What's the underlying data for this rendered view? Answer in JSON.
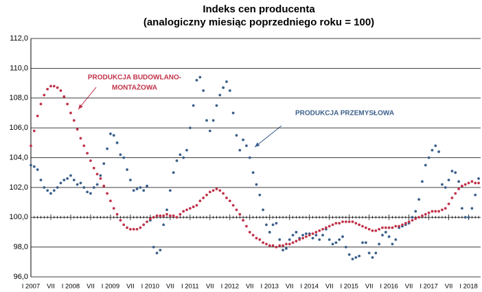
{
  "chart_data": {
    "type": "line",
    "title": "Indeks cen producenta",
    "subtitle": "(analogiczny miesiąc poprzedniego roku = 100)",
    "categories": [
      "I 2007",
      null,
      null,
      null,
      null,
      null,
      "VII",
      null,
      null,
      null,
      null,
      null,
      "I 2008",
      null,
      null,
      null,
      null,
      null,
      "VII",
      null,
      null,
      null,
      null,
      null,
      "I 2009",
      null,
      null,
      null,
      null,
      null,
      "VII",
      null,
      null,
      null,
      null,
      null,
      "I 2010",
      null,
      null,
      null,
      null,
      null,
      "VII",
      null,
      null,
      null,
      null,
      null,
      "I 2011",
      null,
      null,
      null,
      null,
      null,
      "VII",
      null,
      null,
      null,
      null,
      null,
      "I 2012",
      null,
      null,
      null,
      null,
      null,
      "VII",
      null,
      null,
      null,
      null,
      null,
      "I 2013",
      null,
      null,
      null,
      null,
      null,
      "VII",
      null,
      null,
      null,
      null,
      null,
      "I 2014",
      null,
      null,
      null,
      null,
      null,
      "VII",
      null,
      null,
      null,
      null,
      null,
      "I 2015",
      null,
      null,
      null,
      null,
      null,
      "VII",
      null,
      null,
      null,
      null,
      null,
      "I 2016",
      null,
      null,
      null,
      null,
      null,
      "VII",
      null,
      null,
      null,
      null,
      null,
      "I 2017",
      null,
      null,
      null,
      null,
      null,
      "VII",
      null,
      null,
      null,
      null,
      null,
      "I 2018",
      null,
      null,
      null
    ],
    "series": [
      {
        "name": "PRODUKCJA PRZEMYSŁOWA",
        "color": "#3b5f8a",
        "values": [
          103.5,
          103.4,
          103.2,
          102.5,
          102.0,
          101.8,
          101.6,
          101.8,
          102.0,
          102.3,
          102.5,
          102.6,
          102.8,
          102.5,
          102.2,
          102.3,
          102.0,
          101.7,
          101.6,
          102.0,
          102.2,
          102.8,
          103.6,
          104.6,
          105.6,
          105.5,
          105.0,
          104.2,
          104.0,
          103.2,
          102.5,
          101.8,
          101.9,
          102.0,
          101.8,
          102.1,
          99.8,
          98.0,
          97.6,
          97.8,
          99.5,
          100.5,
          101.8,
          103.0,
          103.8,
          104.2,
          104.0,
          104.5,
          106.0,
          107.5,
          109.2,
          109.4,
          108.5,
          106.5,
          105.8,
          106.5,
          107.5,
          108.2,
          108.7,
          109.1,
          108.5,
          107.0,
          105.5,
          104.5,
          105.2,
          104.8,
          104.0,
          103.0,
          102.2,
          101.5,
          100.5,
          99.5,
          99.0,
          99.5,
          99.6,
          98.5,
          97.8,
          97.9,
          98.5,
          98.8,
          99.0,
          98.6,
          98.8,
          98.9,
          98.9,
          98.6,
          98.8,
          98.5,
          98.8,
          99.2,
          98.5,
          98.2,
          98.3,
          98.5,
          98.7,
          98.0,
          97.5,
          97.2,
          97.3,
          97.4,
          98.3,
          98.3,
          97.6,
          97.3,
          97.6,
          98.2,
          98.8,
          99.0,
          98.7,
          98.2,
          98.5,
          99.3,
          99.4,
          99.5,
          99.6,
          100.0,
          100.4,
          101.2,
          102.4,
          103.5,
          104.0,
          104.5,
          104.8,
          104.4,
          102.2,
          102.0,
          102.5,
          103.1,
          103.0,
          102.4,
          100.6,
          100.0,
          100.0,
          100.6,
          101.5,
          102.6
        ]
      },
      {
        "name": "PRODUKCJA BUDOWLANO-MONTAŻOWA",
        "color": "#c0334a",
        "values": [
          104.8,
          105.8,
          106.8,
          107.6,
          108.2,
          108.6,
          108.8,
          108.8,
          108.7,
          108.5,
          108.1,
          107.6,
          107.0,
          106.5,
          105.9,
          105.3,
          104.8,
          104.3,
          103.8,
          103.3,
          102.9,
          102.6,
          102.1,
          101.6,
          101.1,
          100.6,
          100.2,
          99.8,
          99.5,
          99.3,
          99.2,
          99.2,
          99.2,
          99.3,
          99.5,
          99.7,
          99.9,
          100.0,
          100.1,
          100.1,
          100.1,
          100.2,
          100.1,
          100.1,
          100.0,
          100.2,
          100.4,
          100.5,
          100.6,
          100.7,
          100.8,
          101.1,
          101.3,
          101.5,
          101.7,
          101.8,
          101.9,
          101.8,
          101.6,
          101.3,
          101.1,
          100.8,
          100.5,
          100.2,
          99.8,
          99.4,
          99.0,
          98.8,
          98.6,
          98.5,
          98.3,
          98.2,
          98.1,
          98.1,
          98.0,
          98.1,
          98.1,
          98.2,
          98.2,
          98.3,
          98.4,
          98.5,
          98.6,
          98.7,
          98.8,
          98.9,
          99.0,
          99.1,
          99.2,
          99.3,
          99.4,
          99.5,
          99.6,
          99.6,
          99.7,
          99.7,
          99.7,
          99.7,
          99.6,
          99.5,
          99.4,
          99.3,
          99.2,
          99.1,
          99.1,
          99.2,
          99.3,
          99.3,
          99.3,
          99.3,
          99.4,
          99.4,
          99.5,
          99.6,
          99.7,
          99.8,
          99.9,
          100.0,
          100.1,
          100.2,
          100.3,
          100.4,
          100.4,
          100.4,
          100.5,
          100.6,
          100.9,
          101.3,
          101.6,
          101.9,
          102.1,
          102.2,
          102.3,
          102.4,
          102.3,
          102.3
        ]
      }
    ],
    "annotations": [
      {
        "lines": [
          "PRODUKCJA BUDOWLANO-",
          "MONTAŻOWA"
        ],
        "color": "#c0334a"
      },
      {
        "lines": [
          "PRODUKCJA  PRZEMYSŁOWA"
        ],
        "color": "#3b5f8a"
      }
    ],
    "ylim": [
      96,
      112
    ],
    "yticks": [
      {
        "value": 96,
        "label": "96,0"
      },
      {
        "value": 98,
        "label": "98,0"
      },
      {
        "value": 100,
        "label": "100,0"
      },
      {
        "value": 102,
        "label": "102,0"
      },
      {
        "value": 104,
        "label": "104,0"
      },
      {
        "value": 106,
        "label": "106,0"
      },
      {
        "value": 108,
        "label": "108,0"
      },
      {
        "value": 110,
        "label": "110,0"
      },
      {
        "value": 112,
        "label": "112,0"
      }
    ],
    "grid": true
  }
}
